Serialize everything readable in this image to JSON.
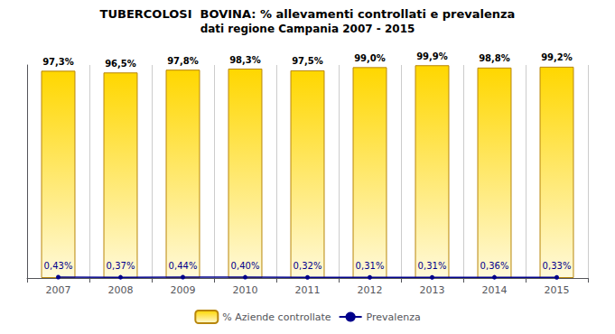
{
  "chart_data": {
    "type": "bar",
    "title": "TUBERCOLOSI  BOVINA: % allevamenti controllati e prevalenza",
    "subtitle": "dati regione Campania 2007 - 2015",
    "categories": [
      "2007",
      "2008",
      "2009",
      "2010",
      "2011",
      "2012",
      "2013",
      "2014",
      "2015"
    ],
    "series": [
      {
        "name": "% Aziende controllate",
        "type": "bar",
        "color": "#FFD700",
        "values": [
          97.3,
          96.5,
          97.8,
          98.3,
          97.5,
          99.0,
          99.9,
          98.8,
          99.2
        ],
        "value_labels": [
          "97,3%",
          "96,5%",
          "97,8%",
          "98,3%",
          "97,5%",
          "99,0%",
          "99,9%",
          "98,8%",
          "99,2%"
        ]
      },
      {
        "name": "Prevalenza",
        "type": "line",
        "color": "#00008B",
        "marker": "circle",
        "values": [
          0.43,
          0.37,
          0.44,
          0.4,
          0.32,
          0.31,
          0.31,
          0.36,
          0.33
        ],
        "value_labels": [
          "0,43%",
          "0,37%",
          "0,44%",
          "0,40%",
          "0,32%",
          "0,31%",
          "0,31%",
          "0,36%",
          "0,33%"
        ]
      }
    ],
    "ylim": [
      0,
      100
    ],
    "tick_labels": "x",
    "grid": true,
    "data_labels": true,
    "legend": "bottom"
  }
}
